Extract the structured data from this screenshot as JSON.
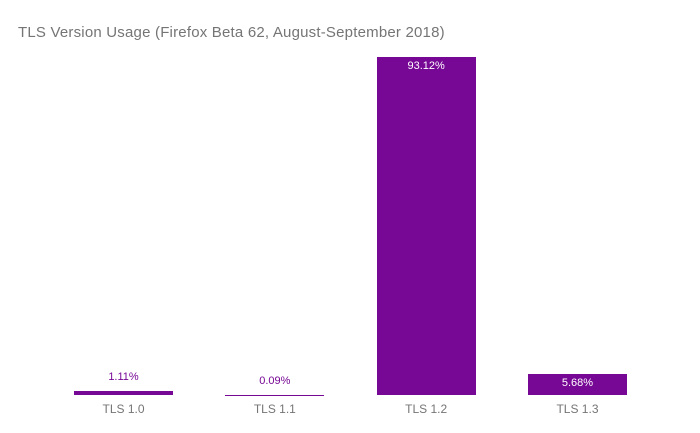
{
  "title": "TLS Version Usage (Firefox Beta 62, August-September 2018)",
  "colors": {
    "background": "#ffffff",
    "bar": "#770795",
    "title_text": "#757575",
    "axis_text": "#757575",
    "annotation_outside": "#770795",
    "annotation_inside": "#ffffff"
  },
  "chart_data": {
    "type": "bar",
    "title": "TLS Version Usage (Firefox Beta 62, August-September 2018)",
    "categories": [
      "TLS 1.0",
      "TLS 1.1",
      "TLS 1.2",
      "TLS 1.3"
    ],
    "values": [
      1.11,
      0.09,
      93.12,
      5.68
    ],
    "value_labels": [
      "1.11%",
      "0.09%",
      "93.12%",
      "5.68%"
    ],
    "label_placement": [
      "above",
      "above",
      "inside",
      "inside"
    ],
    "xlabel": "",
    "ylabel": "",
    "ylim": [
      0,
      100
    ],
    "grid": false,
    "legend": "none",
    "axis_lines": false,
    "bar_color": "#770795"
  }
}
